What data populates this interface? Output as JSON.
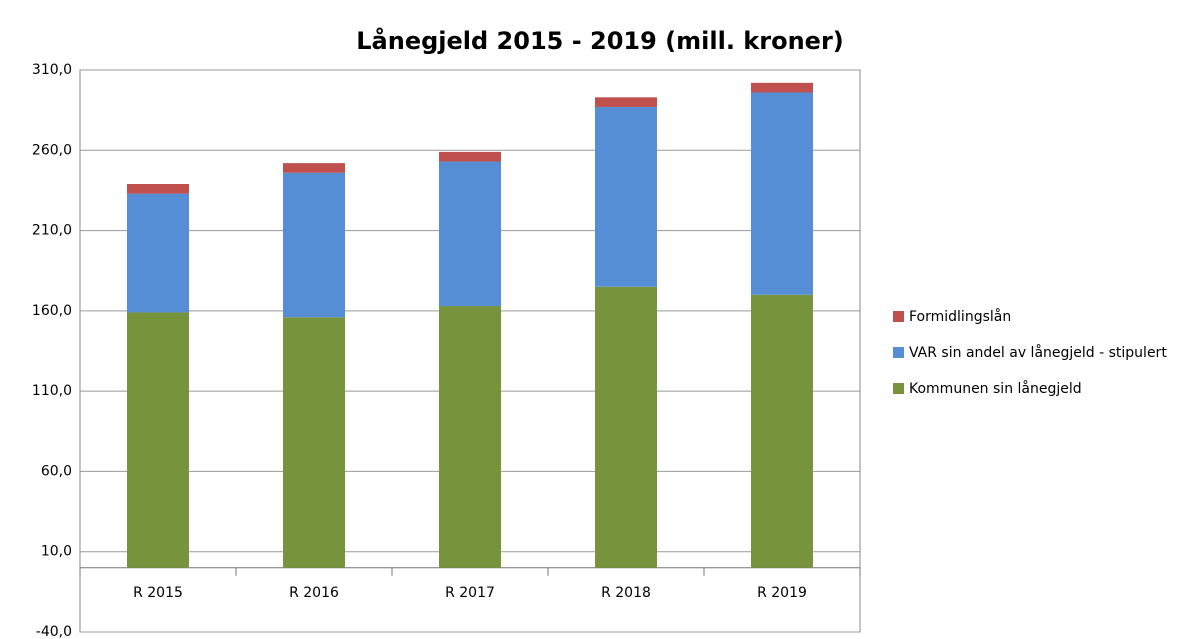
{
  "chart_data": {
    "type": "stacked_bar",
    "title": "Lånegjeld 2015 - 2019 (mill. kroner)",
    "categories": [
      "R 2015",
      "R 2016",
      "R 2017",
      "R 2018",
      "R 2019"
    ],
    "series": [
      {
        "name": "Kommunen sin lånegjeld",
        "color": "#77933c",
        "values": [
          159,
          156,
          163,
          175,
          170
        ]
      },
      {
        "name": "VAR sin andel av lånegjeld - stipulert",
        "color": "#558ed5",
        "values": [
          74,
          90,
          90,
          112,
          126
        ]
      },
      {
        "name": "Formidlingslån",
        "color": "#c0504d",
        "values": [
          6,
          6,
          6,
          6,
          6
        ]
      }
    ],
    "ylim": [
      -40,
      310
    ],
    "yticks": [
      {
        "value": -40,
        "label": "-40,0"
      },
      {
        "value": 10,
        "label": "10,0"
      },
      {
        "value": 60,
        "label": "60,0"
      },
      {
        "value": 110,
        "label": "110,0"
      },
      {
        "value": 160,
        "label": "160,0"
      },
      {
        "value": 210,
        "label": "210,0"
      },
      {
        "value": 260,
        "label": "260,0"
      },
      {
        "value": 310,
        "label": "310,0"
      }
    ],
    "grid": true,
    "legend": "right"
  }
}
